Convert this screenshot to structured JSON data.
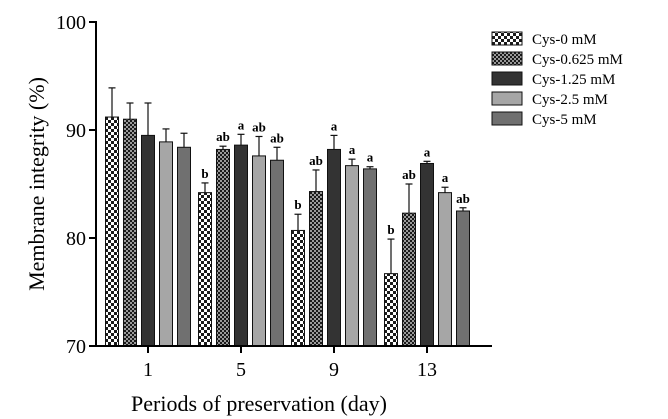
{
  "chart_data": {
    "type": "bar",
    "xlabel": "Periods of preservation (day)",
    "ylabel": "Membrane integrity  (%)",
    "ylim": [
      70,
      100
    ],
    "yticks": [
      70,
      80,
      90,
      100
    ],
    "categories": [
      "1",
      "5",
      "9",
      "13"
    ],
    "grid": false,
    "legend": "top-right",
    "series": [
      {
        "name": "Cys-0 mM",
        "pattern": "checker",
        "color": "#1a1a1a",
        "values": [
          91.2,
          84.2,
          80.7,
          76.7
        ],
        "errors": [
          2.7,
          0.9,
          1.5,
          3.2
        ],
        "labels": [
          "",
          "b",
          "b",
          "b"
        ]
      },
      {
        "name": "Cys-0.625 mM",
        "pattern": "dots",
        "color": "#1a1a1a",
        "values": [
          91.0,
          88.2,
          84.3,
          82.3
        ],
        "errors": [
          1.5,
          0.3,
          2.0,
          2.7
        ],
        "labels": [
          "",
          "ab",
          "ab",
          "ab"
        ]
      },
      {
        "name": "Cys-1.25 mM",
        "pattern": "solid",
        "color": "#333333",
        "values": [
          89.5,
          88.6,
          88.2,
          86.9
        ],
        "errors": [
          3.0,
          1.0,
          1.3,
          0.2
        ],
        "labels": [
          "",
          "a",
          "a",
          "a"
        ]
      },
      {
        "name": "Cys-2.5 mM",
        "pattern": "solid",
        "color": "#a6a6a6",
        "values": [
          88.9,
          87.6,
          86.7,
          84.2
        ],
        "errors": [
          1.2,
          1.8,
          0.6,
          0.5
        ],
        "labels": [
          "",
          "ab",
          "a",
          "a"
        ]
      },
      {
        "name": "Cys-5 mM",
        "pattern": "solid",
        "color": "#707070",
        "values": [
          88.4,
          87.2,
          86.4,
          82.5
        ],
        "errors": [
          1.3,
          1.2,
          0.2,
          0.3
        ],
        "labels": [
          "",
          "ab",
          "a",
          "ab"
        ]
      }
    ]
  }
}
